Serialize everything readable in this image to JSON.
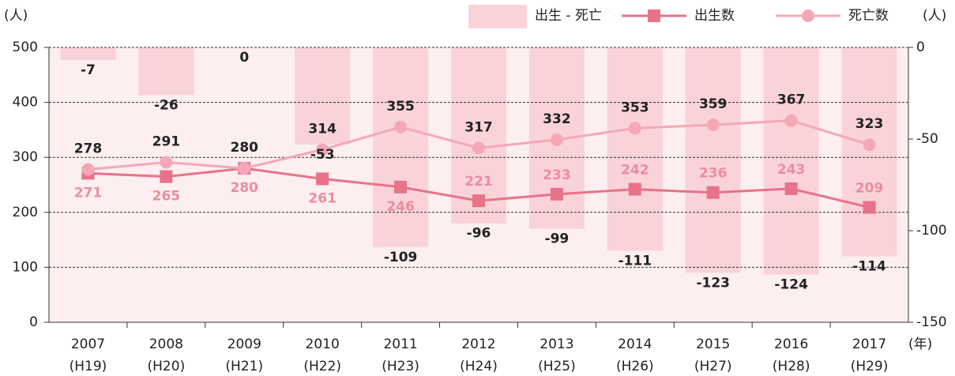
{
  "chart_data": {
    "type": "combo",
    "y_unit": "(人)",
    "y2_unit": "(人)",
    "x_unit": "(年)",
    "categories": [
      "2007",
      "2008",
      "2009",
      "2010",
      "2011",
      "2012",
      "2013",
      "2014",
      "2015",
      "2016",
      "2017"
    ],
    "category_subs": [
      "(H19)",
      "(H20)",
      "(H21)",
      "(H22)",
      "(H23)",
      "(H24)",
      "(H25)",
      "(H26)",
      "(H27)",
      "(H28)",
      "(H29)"
    ],
    "series": [
      {
        "name": "出生 - 死亡",
        "type": "bar",
        "axis": "y2",
        "color": "#f9d3d8",
        "values": [
          -7,
          -26,
          0,
          -53,
          -109,
          -96,
          -99,
          -111,
          -123,
          -124,
          -114
        ]
      },
      {
        "name": "出生数",
        "type": "line",
        "marker": "square",
        "color": "#e8728a",
        "label_color": "#ec8c9e",
        "values": [
          271,
          265,
          280,
          261,
          246,
          221,
          233,
          242,
          236,
          243,
          209
        ]
      },
      {
        "name": "死亡数",
        "type": "line",
        "marker": "circle",
        "color": "#f4a8b5",
        "label_color": "#222222",
        "values": [
          278,
          291,
          280,
          314,
          355,
          317,
          332,
          353,
          359,
          367,
          323
        ]
      }
    ],
    "ylim": [
      0,
      500
    ],
    "yticks": [
      0,
      100,
      200,
      300,
      400,
      500
    ],
    "y2lim": [
      -150,
      0
    ],
    "y2ticks": [
      0,
      -50,
      -100,
      -150
    ],
    "grid": true,
    "plot_background": "#fdeef0"
  }
}
